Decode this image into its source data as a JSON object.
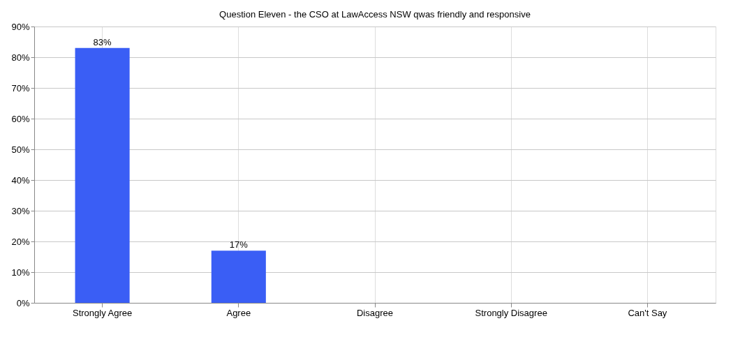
{
  "chart_data": {
    "type": "bar",
    "title": "Question Eleven - the CSO at LawAccess NSW qwas friendly and responsive",
    "categories": [
      "Strongly Agree",
      "Agree",
      "Disagree",
      "Strongly Disagree",
      "Can't Say"
    ],
    "values": [
      83,
      17,
      0,
      0,
      0
    ],
    "color": "#3a5ef5",
    "value_labels": [
      "83%",
      "17%",
      null,
      null,
      null
    ],
    "ylim": [
      0,
      90
    ],
    "yticks": [
      {
        "value": 0,
        "label": "0%"
      },
      {
        "value": 10,
        "label": "10%"
      },
      {
        "value": 20,
        "label": "20%"
      },
      {
        "value": 30,
        "label": "30%"
      },
      {
        "value": 40,
        "label": "40%"
      },
      {
        "value": 50,
        "label": "50%"
      },
      {
        "value": 60,
        "label": "60%"
      },
      {
        "value": 70,
        "label": "70%"
      },
      {
        "value": 80,
        "label": "80%"
      },
      {
        "value": 90,
        "label": "90%"
      }
    ],
    "grid": true
  }
}
